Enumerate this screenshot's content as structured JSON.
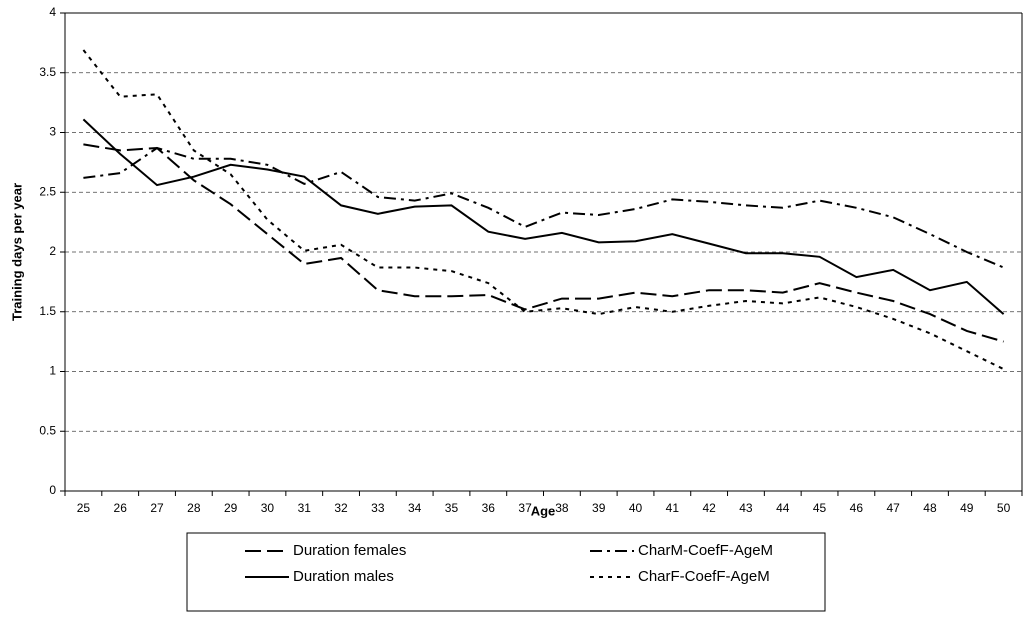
{
  "chart_data": {
    "type": "line",
    "y_label": "Training days per year",
    "x_label": "Age",
    "categories": [
      25,
      26,
      27,
      28,
      29,
      30,
      31,
      32,
      33,
      34,
      35,
      36,
      37,
      38,
      39,
      40,
      41,
      42,
      43,
      44,
      45,
      46,
      47,
      48,
      49,
      50
    ],
    "ylim": [
      0,
      4
    ],
    "yticks": [
      0,
      0.5,
      1,
      1.5,
      2,
      2.5,
      3,
      3.5,
      4
    ],
    "grid": true,
    "legend": "bottom",
    "series": [
      {
        "name": "Duration females",
        "color": "#000000",
        "dash": "16,6",
        "values": [
          2.9,
          2.85,
          2.87,
          2.6,
          2.4,
          2.15,
          1.9,
          1.95,
          1.68,
          1.63,
          1.63,
          1.64,
          1.52,
          1.61,
          1.61,
          1.66,
          1.63,
          1.68,
          1.68,
          1.66,
          1.74,
          1.66,
          1.59,
          1.48,
          1.34,
          1.25
        ]
      },
      {
        "name": "CharM-CoefF-AgeM",
        "color": "#000000",
        "dash": "12,5,3,5",
        "values": [
          2.62,
          2.66,
          2.87,
          2.78,
          2.78,
          2.73,
          2.57,
          2.67,
          2.46,
          2.43,
          2.49,
          2.37,
          2.21,
          2.33,
          2.31,
          2.36,
          2.44,
          2.42,
          2.39,
          2.37,
          2.43,
          2.37,
          2.29,
          2.15,
          2.0,
          1.87
        ]
      },
      {
        "name": "Duration males",
        "color": "#000000",
        "dash": "none",
        "values": [
          3.11,
          2.82,
          2.56,
          2.63,
          2.73,
          2.69,
          2.63,
          2.39,
          2.32,
          2.38,
          2.39,
          2.17,
          2.11,
          2.16,
          2.08,
          2.09,
          2.15,
          2.07,
          1.99,
          1.99,
          1.96,
          1.79,
          1.85,
          1.68,
          1.75,
          1.48
        ]
      },
      {
        "name": "CharF-CoefF-AgeM",
        "color": "#000000",
        "dash": "4,5",
        "values": [
          3.69,
          3.3,
          3.32,
          2.85,
          2.65,
          2.27,
          2.01,
          2.06,
          1.87,
          1.87,
          1.84,
          1.74,
          1.5,
          1.53,
          1.48,
          1.54,
          1.5,
          1.55,
          1.59,
          1.57,
          1.62,
          1.54,
          1.44,
          1.32,
          1.17,
          1.02
        ]
      }
    ]
  }
}
